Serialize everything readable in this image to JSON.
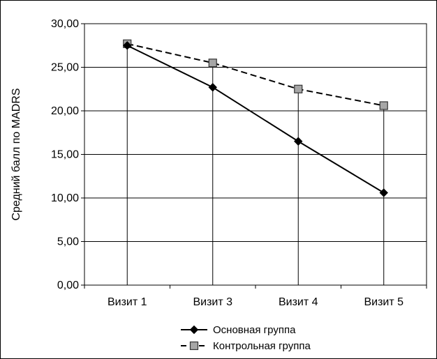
{
  "chart_data": {
    "type": "line",
    "title": "",
    "xlabel": "",
    "ylabel": "Средний балл по MADRS",
    "categories": [
      "Визит 1",
      "Визит 3",
      "Визит 4",
      "Визит 5"
    ],
    "ylim": [
      0,
      30
    ],
    "yticks": [
      "0,00",
      "5,00",
      "10,00",
      "15,00",
      "20,00",
      "25,00",
      "30,00"
    ],
    "grid": true,
    "legend_position": "bottom",
    "series": [
      {
        "name": "Основная группа",
        "values": [
          27.5,
          22.7,
          16.5,
          10.6
        ],
        "marker": "diamond",
        "line": "solid",
        "color": "#000000"
      },
      {
        "name": "Контрольная группа",
        "values": [
          27.7,
          25.5,
          22.5,
          20.6
        ],
        "marker": "square",
        "line": "dashed",
        "color": "#000000",
        "marker_fill": "#a6a6a6"
      }
    ]
  }
}
